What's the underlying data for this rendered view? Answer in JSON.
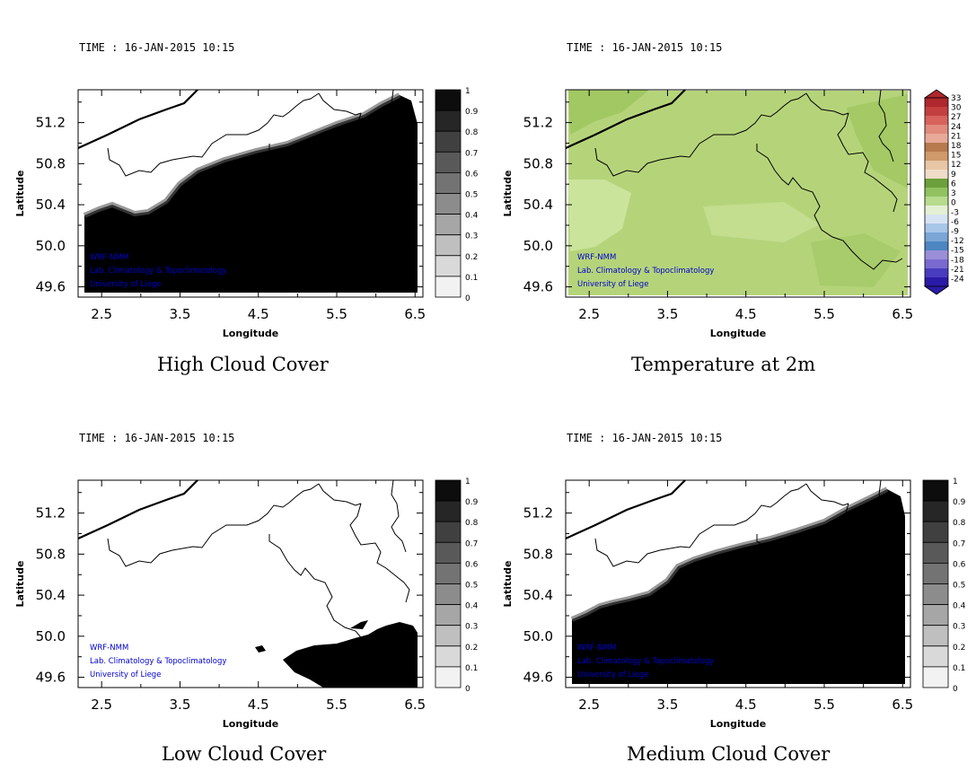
{
  "panels": [
    {
      "time_label": "TIME : 16-JAN-2015 10:15",
      "title": "High Cloud Cover",
      "field": "high",
      "xlabel": "Longitude",
      "ylabel": "Latitude",
      "x_ticks": [
        "2.5",
        "3.5",
        "4.5",
        "5.5",
        "6.5"
      ],
      "y_ticks": [
        "51.2",
        "50.8",
        "50.4",
        "50.0",
        "49.6"
      ],
      "watermark": [
        "WRF-NMM",
        "Lab. Climatology & Topoclimatology",
        "University of Liege"
      ],
      "colorbar": {
        "type": "gray",
        "labels": [
          "1",
          "0.9",
          "0.8",
          "0.7",
          "0.6",
          "0.5",
          "0.4",
          "0.3",
          "0.2",
          "0.1",
          "0"
        ]
      }
    },
    {
      "time_label": "TIME : 16-JAN-2015 10:15",
      "title": "Temperature at 2m",
      "field": "temp",
      "xlabel": "Longitude",
      "ylabel": "Latitude",
      "x_ticks": [
        "2.5",
        "3.5",
        "4.5",
        "5.5",
        "6.5"
      ],
      "y_ticks": [
        "51.2",
        "50.8",
        "50.4",
        "50.0",
        "49.6"
      ],
      "watermark": [
        "WRF-NMM",
        "Lab. Climatology & Topoclimatology",
        "University of Liege"
      ],
      "colorbar": {
        "type": "temp",
        "labels": [
          "33",
          "30",
          "27",
          "24",
          "21",
          "18",
          "15",
          "12",
          "9",
          "6",
          "3",
          "0",
          "-3",
          "-6",
          "-9",
          "-12",
          "-15",
          "-18",
          "-21",
          "-24"
        ]
      }
    },
    {
      "time_label": "TIME : 16-JAN-2015 10:15",
      "title": "Low Cloud Cover",
      "field": "low",
      "xlabel": "Longitude",
      "ylabel": "Latitude",
      "x_ticks": [
        "2.5",
        "3.5",
        "4.5",
        "5.5",
        "6.5"
      ],
      "y_ticks": [
        "51.2",
        "50.8",
        "50.4",
        "50.0",
        "49.6"
      ],
      "watermark": [
        "WRF-NMM",
        "Lab. Climatology & Topoclimatology",
        "University of Liege"
      ],
      "colorbar": {
        "type": "gray",
        "labels": [
          "1",
          "0.9",
          "0.8",
          "0.7",
          "0.6",
          "0.5",
          "0.4",
          "0.3",
          "0.2",
          "0.1",
          "0"
        ]
      }
    },
    {
      "time_label": "TIME : 16-JAN-2015 10:15",
      "title": "Medium Cloud Cover",
      "field": "medium",
      "xlabel": "Longitude",
      "ylabel": "Latitude",
      "x_ticks": [
        "2.5",
        "3.5",
        "4.5",
        "5.5",
        "6.5"
      ],
      "y_ticks": [
        "51.2",
        "50.8",
        "50.4",
        "50.0",
        "49.6"
      ],
      "watermark": [
        "WRF-NMM",
        "Lab. Climatology & Topoclimatology",
        "University of Liege"
      ],
      "colorbar": {
        "type": "gray",
        "labels": [
          "1",
          "0.9",
          "0.8",
          "0.7",
          "0.6",
          "0.5",
          "0.4",
          "0.3",
          "0.2",
          "0.1",
          "0"
        ]
      }
    }
  ],
  "colors": {
    "watermark": "#0000cc",
    "cloud": "#000000",
    "temp_base": "#b5d47a",
    "temp_light": "#cde6a0",
    "temp_dark": "#9cc45c",
    "temp_scale_top": [
      "#b0272d",
      "#c43f3f",
      "#d8625c",
      "#e08b7d",
      "#e8aa98",
      "#b77a4f",
      "#d09a6a",
      "#e8c6a6",
      "#f0dcc8",
      "#6ba03a",
      "#92c25f",
      "#b8db8d",
      "#e3f0d3",
      "#d6e3f3",
      "#a8c6e8",
      "#7aa6d6",
      "#4d86c2",
      "#9b8fd8",
      "#7a6ad0",
      "#4a3cbf",
      "#2a1aa8"
    ]
  }
}
